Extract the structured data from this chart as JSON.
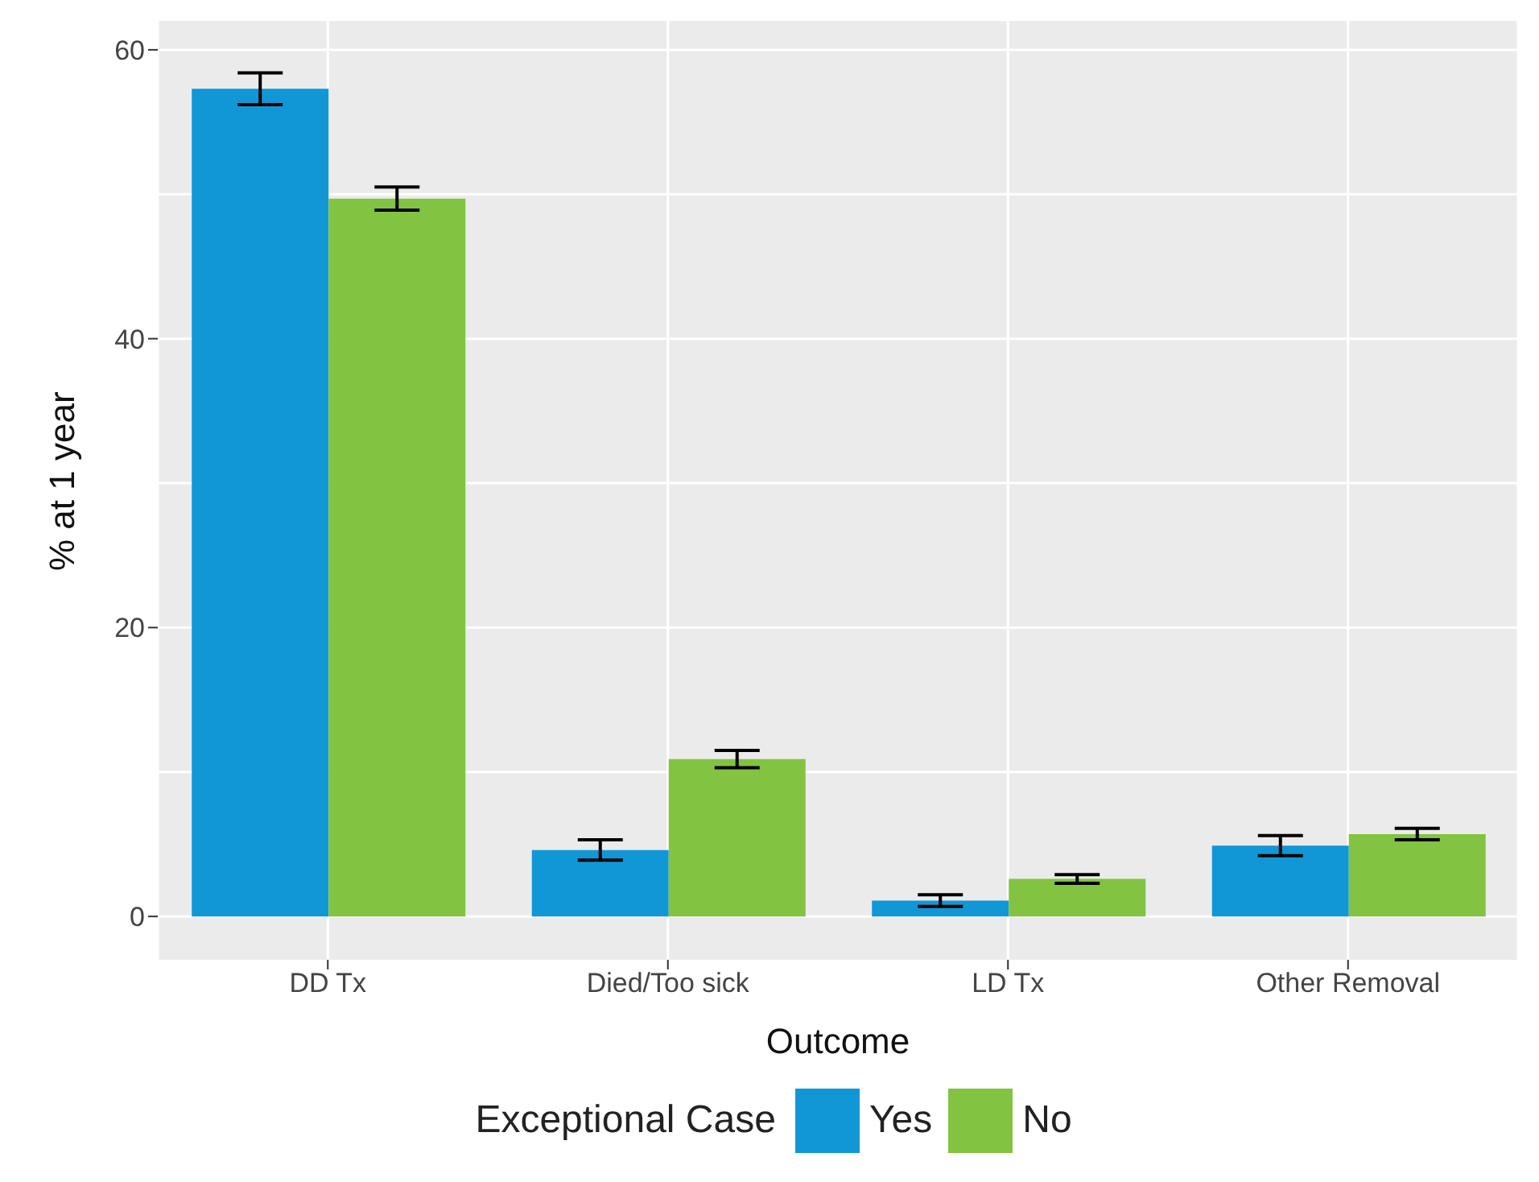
{
  "chart_data": {
    "type": "bar",
    "xlabel": "Outcome",
    "ylabel": "% at 1 year",
    "legend_title": "Exceptional Case",
    "legend": "bottom",
    "grid": true,
    "categories": [
      "DD Tx",
      "Died/Too sick",
      "LD Tx",
      "Other Removal"
    ],
    "ylim": [
      -3,
      62
    ],
    "yticks": [
      0,
      20,
      40,
      60
    ],
    "series": [
      {
        "name": "Yes",
        "color": "#1197d6",
        "values": [
          57.3,
          4.6,
          1.1,
          4.9
        ],
        "errors": [
          1.1,
          0.7,
          0.4,
          0.7
        ]
      },
      {
        "name": "No",
        "color": "#82c341",
        "values": [
          49.7,
          10.9,
          2.6,
          5.7
        ],
        "errors": [
          0.8,
          0.6,
          0.3,
          0.4
        ]
      }
    ]
  }
}
